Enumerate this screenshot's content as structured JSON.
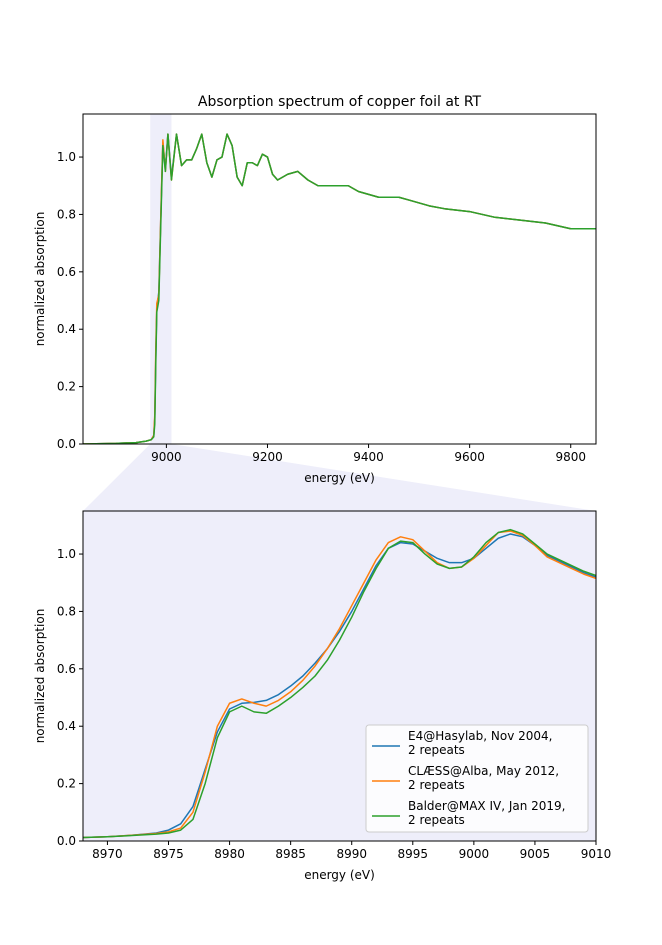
{
  "chart_data": [
    {
      "type": "line",
      "title": "Absorption spectrum of copper foil at RT",
      "xlabel": "energy (eV)",
      "ylabel": "normalized absorption",
      "xlim": [
        8835,
        9850
      ],
      "ylim": [
        0,
        1.15
      ],
      "xticks": [
        9000,
        9200,
        9400,
        9600,
        9800
      ],
      "yticks": [
        0.0,
        0.2,
        0.4,
        0.6,
        0.8,
        1.0
      ],
      "grid": false,
      "zoom_band": [
        8968,
        9010
      ],
      "series": [
        {
          "color": "#1f77b4",
          "x": [
            8835,
            8900,
            8940,
            8960,
            8970,
            8975,
            8977,
            8979,
            8981,
            8985,
            8990,
            8993,
            8998,
            9003,
            9010,
            9020,
            9030,
            9040,
            9050,
            9060,
            9070,
            9080,
            9090,
            9100,
            9110,
            9120,
            9130,
            9140,
            9150,
            9160,
            9170,
            9180,
            9190,
            9200,
            9210,
            9220,
            9230,
            9240,
            9260,
            9280,
            9300,
            9320,
            9340,
            9360,
            9380,
            9400,
            9420,
            9440,
            9460,
            9480,
            9500,
            9520,
            9550,
            9600,
            9650,
            9700,
            9750,
            9800,
            9850
          ],
          "y": [
            0.0,
            0.002,
            0.005,
            0.01,
            0.015,
            0.03,
            0.09,
            0.3,
            0.47,
            0.53,
            0.86,
            1.05,
            0.96,
            1.08,
            0.93,
            1.08,
            0.97,
            0.99,
            0.99,
            1.03,
            1.08,
            0.98,
            0.93,
            0.99,
            1.0,
            1.08,
            1.04,
            0.93,
            0.9,
            0.98,
            0.98,
            0.97,
            1.01,
            1.0,
            0.94,
            0.92,
            0.93,
            0.94,
            0.95,
            0.92,
            0.9,
            0.9,
            0.9,
            0.9,
            0.88,
            0.87,
            0.86,
            0.86,
            0.86,
            0.85,
            0.84,
            0.83,
            0.82,
            0.81,
            0.79,
            0.78,
            0.77,
            0.75,
            0.75
          ]
        },
        {
          "color": "#ff7f0e",
          "x": [
            8835,
            8900,
            8940,
            8960,
            8970,
            8975,
            8977,
            8979,
            8981,
            8985,
            8990,
            8993,
            8998,
            9003,
            9010,
            9020,
            9030,
            9040,
            9050,
            9060,
            9070,
            9080,
            9090,
            9100,
            9110,
            9120,
            9130,
            9140,
            9150,
            9160,
            9170,
            9180,
            9190,
            9200,
            9210,
            9220,
            9230,
            9240,
            9260,
            9280,
            9300,
            9320,
            9340,
            9360,
            9380,
            9400,
            9420,
            9440,
            9460,
            9480,
            9500,
            9520,
            9550,
            9600,
            9650,
            9700,
            9750,
            9800,
            9850
          ],
          "y": [
            0.0,
            0.002,
            0.005,
            0.01,
            0.015,
            0.03,
            0.1,
            0.33,
            0.49,
            0.52,
            0.87,
            1.06,
            0.95,
            1.08,
            0.92,
            1.08,
            0.97,
            0.99,
            0.99,
            1.03,
            1.08,
            0.98,
            0.93,
            0.99,
            1.0,
            1.08,
            1.04,
            0.93,
            0.9,
            0.98,
            0.98,
            0.97,
            1.01,
            1.0,
            0.94,
            0.92,
            0.93,
            0.94,
            0.95,
            0.92,
            0.9,
            0.9,
            0.9,
            0.9,
            0.88,
            0.87,
            0.86,
            0.86,
            0.86,
            0.85,
            0.84,
            0.83,
            0.82,
            0.81,
            0.79,
            0.78,
            0.77,
            0.75,
            0.75
          ]
        },
        {
          "color": "#2ca02c",
          "x": [
            8835,
            8900,
            8940,
            8960,
            8970,
            8975,
            8977,
            8979,
            8981,
            8985,
            8990,
            8993,
            8998,
            9003,
            9010,
            9020,
            9030,
            9040,
            9050,
            9060,
            9070,
            9080,
            9090,
            9100,
            9110,
            9120,
            9130,
            9140,
            9150,
            9160,
            9170,
            9180,
            9190,
            9200,
            9210,
            9220,
            9230,
            9240,
            9260,
            9280,
            9300,
            9320,
            9340,
            9360,
            9380,
            9400,
            9420,
            9440,
            9460,
            9480,
            9500,
            9520,
            9550,
            9600,
            9650,
            9700,
            9750,
            9800,
            9850
          ],
          "y": [
            0.0,
            0.002,
            0.005,
            0.01,
            0.015,
            0.025,
            0.07,
            0.28,
            0.46,
            0.5,
            0.84,
            1.04,
            0.95,
            1.08,
            0.92,
            1.08,
            0.97,
            0.99,
            0.99,
            1.03,
            1.08,
            0.98,
            0.93,
            0.99,
            1.0,
            1.08,
            1.04,
            0.93,
            0.9,
            0.98,
            0.98,
            0.97,
            1.01,
            1.0,
            0.94,
            0.92,
            0.93,
            0.94,
            0.95,
            0.92,
            0.9,
            0.9,
            0.9,
            0.9,
            0.88,
            0.87,
            0.86,
            0.86,
            0.86,
            0.85,
            0.84,
            0.83,
            0.82,
            0.81,
            0.79,
            0.78,
            0.77,
            0.75,
            0.75
          ]
        }
      ]
    },
    {
      "type": "line",
      "title": "",
      "xlabel": "energy (eV)",
      "ylabel": "normalized absorption",
      "xlim": [
        8968,
        9010
      ],
      "ylim": [
        0,
        1.15
      ],
      "xticks": [
        8970,
        8975,
        8980,
        8985,
        8990,
        8995,
        9000,
        9005,
        9010
      ],
      "yticks": [
        0.0,
        0.2,
        0.4,
        0.6,
        0.8,
        1.0
      ],
      "grid": false,
      "legend_position": "lower-right",
      "series": [
        {
          "name": "E4@Hasylab, Nov 2004,\n2 repeats",
          "color": "#1f77b4",
          "x": [
            8968,
            8970,
            8972,
            8974,
            8975,
            8976,
            8977,
            8978,
            8979,
            8980,
            8981,
            8982,
            8983,
            8984,
            8985,
            8986,
            8987,
            8988,
            8989,
            8990,
            8991,
            8992,
            8993,
            8994,
            8995,
            8996,
            8997,
            8998,
            8999,
            9000,
            9001,
            9002,
            9003,
            9004,
            9005,
            9006,
            9007,
            9008,
            9009,
            9010
          ],
          "y": [
            0.012,
            0.015,
            0.02,
            0.028,
            0.038,
            0.06,
            0.12,
            0.25,
            0.38,
            0.46,
            0.48,
            0.483,
            0.49,
            0.51,
            0.54,
            0.575,
            0.62,
            0.67,
            0.73,
            0.8,
            0.88,
            0.96,
            1.02,
            1.04,
            1.035,
            1.01,
            0.985,
            0.97,
            0.97,
            0.985,
            1.02,
            1.055,
            1.07,
            1.06,
            1.03,
            0.995,
            0.975,
            0.955,
            0.935,
            0.92
          ]
        },
        {
          "name": "CLÆSS@Alba, May 2012,\n2 repeats",
          "color": "#ff7f0e",
          "x": [
            8968,
            8970,
            8972,
            8974,
            8975,
            8976,
            8977,
            8978,
            8979,
            8980,
            8981,
            8982,
            8983,
            8984,
            8985,
            8986,
            8987,
            8988,
            8989,
            8990,
            8991,
            8992,
            8993,
            8994,
            8995,
            8996,
            8997,
            8998,
            8999,
            9000,
            9001,
            9002,
            9003,
            9004,
            9005,
            9006,
            9007,
            9008,
            9009,
            9010
          ],
          "y": [
            0.012,
            0.015,
            0.02,
            0.026,
            0.032,
            0.045,
            0.1,
            0.24,
            0.4,
            0.48,
            0.495,
            0.48,
            0.47,
            0.49,
            0.52,
            0.56,
            0.61,
            0.67,
            0.74,
            0.82,
            0.9,
            0.98,
            1.04,
            1.06,
            1.05,
            1.01,
            0.97,
            0.95,
            0.955,
            0.985,
            1.03,
            1.075,
            1.08,
            1.065,
            1.03,
            0.99,
            0.97,
            0.95,
            0.93,
            0.915
          ]
        },
        {
          "name": "Balder@MAX IV, Jan 2019,\n2 repeats",
          "color": "#2ca02c",
          "x": [
            8968,
            8970,
            8972,
            8974,
            8975,
            8976,
            8977,
            8978,
            8979,
            8980,
            8981,
            8982,
            8983,
            8984,
            8985,
            8986,
            8987,
            8988,
            8989,
            8990,
            8991,
            8992,
            8993,
            8994,
            8995,
            8996,
            8997,
            8998,
            8999,
            9000,
            9001,
            9002,
            9003,
            9004,
            9005,
            9006,
            9007,
            9008,
            9009,
            9010
          ],
          "y": [
            0.012,
            0.015,
            0.019,
            0.024,
            0.028,
            0.038,
            0.075,
            0.2,
            0.36,
            0.45,
            0.47,
            0.45,
            0.445,
            0.47,
            0.5,
            0.535,
            0.575,
            0.63,
            0.7,
            0.78,
            0.87,
            0.95,
            1.02,
            1.045,
            1.04,
            1.0,
            0.965,
            0.95,
            0.955,
            0.99,
            1.04,
            1.075,
            1.085,
            1.07,
            1.035,
            1.0,
            0.98,
            0.96,
            0.94,
            0.925
          ]
        }
      ]
    }
  ]
}
